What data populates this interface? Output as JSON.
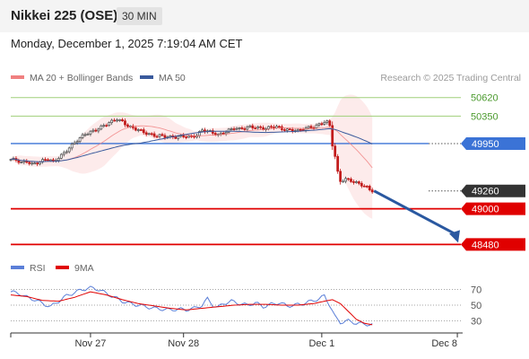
{
  "header": {
    "title": "Nikkei 225 (OSE)",
    "timeframe": "30 MIN"
  },
  "date_line": "Monday, December 1, 2025 7:19:04 AM CET",
  "copyright": "Research © 2025 Trading Central",
  "colors": {
    "bollinger": "#f08080",
    "ma50": "#3a5a9c",
    "resistance": "#3b73d6",
    "support": "#e00000",
    "green_lines": "#9fcf7a",
    "price_tag": "#333333",
    "rsi": "#5b7fd8",
    "rsi_ma": "#e00000",
    "arrow": "#2a58a0"
  },
  "chart_data": [
    {
      "type": "candlestick",
      "legend": [
        {
          "name": "MA 20 + Bollinger Bands",
          "color": "#f08080"
        },
        {
          "name": "MA 50",
          "color": "#3a5a9c"
        }
      ],
      "ylim": [
        48380,
        50760
      ],
      "x_ticks": [
        "Nov 27",
        "Nov 28",
        "Dec 1",
        "Dec 8"
      ],
      "levels": [
        {
          "value": 50620,
          "label": "50620",
          "kind": "green"
        },
        {
          "value": 50350,
          "label": "50350",
          "kind": "green"
        },
        {
          "value": 49950,
          "label": "49950",
          "kind": "resistance"
        },
        {
          "value": 49260,
          "label": "49260",
          "kind": "price"
        },
        {
          "value": 49000,
          "label": "49000",
          "kind": "support"
        },
        {
          "value": 48480,
          "label": "48480",
          "kind": "support"
        }
      ],
      "close_path": [
        [
          0,
          49720
        ],
        [
          2,
          49700
        ],
        [
          4,
          49660
        ],
        [
          6,
          49690
        ],
        [
          8,
          49660
        ],
        [
          10,
          49680
        ],
        [
          12,
          49700
        ],
        [
          14,
          49720
        ],
        [
          16,
          49670
        ],
        [
          18,
          49750
        ],
        [
          20,
          49820
        ],
        [
          22,
          49900
        ],
        [
          24,
          49960
        ],
        [
          26,
          50020
        ],
        [
          28,
          50080
        ],
        [
          30,
          50120
        ],
        [
          32,
          50160
        ],
        [
          34,
          50200
        ],
        [
          36,
          50230
        ],
        [
          38,
          50260
        ],
        [
          40,
          50300
        ],
        [
          42,
          50270
        ],
        [
          44,
          50220
        ],
        [
          46,
          50180
        ],
        [
          48,
          50150
        ],
        [
          50,
          50100
        ],
        [
          52,
          50080
        ],
        [
          54,
          50070
        ],
        [
          56,
          50080
        ],
        [
          58,
          50060
        ],
        [
          60,
          50040
        ],
        [
          62,
          50030
        ],
        [
          64,
          50050
        ],
        [
          66,
          50060
        ],
        [
          68,
          50060
        ],
        [
          70,
          50080
        ],
        [
          72,
          50140
        ],
        [
          74,
          50120
        ],
        [
          76,
          50100
        ],
        [
          78,
          50080
        ],
        [
          80,
          50120
        ],
        [
          82,
          50150
        ],
        [
          84,
          50170
        ],
        [
          86,
          50150
        ],
        [
          88,
          50170
        ],
        [
          90,
          50200
        ],
        [
          92,
          50200
        ],
        [
          94,
          50180
        ],
        [
          96,
          50160
        ],
        [
          98,
          50180
        ],
        [
          100,
          50190
        ],
        [
          102,
          50170
        ],
        [
          104,
          50160
        ],
        [
          106,
          50150
        ],
        [
          108,
          50130
        ],
        [
          110,
          50150
        ],
        [
          112,
          50180
        ],
        [
          114,
          50200
        ],
        [
          116,
          50240
        ],
        [
          118,
          50270
        ],
        [
          119,
          50260
        ],
        [
          120,
          50200
        ],
        [
          121,
          49920
        ],
        [
          122,
          49750
        ],
        [
          123,
          49520
        ],
        [
          124,
          49400
        ],
        [
          126,
          49440
        ],
        [
          128,
          49420
        ],
        [
          130,
          49380
        ],
        [
          132,
          49340
        ],
        [
          134,
          49300
        ],
        [
          135,
          49270
        ],
        [
          136,
          49260
        ]
      ],
      "forecast": {
        "from": 49260,
        "to": 48480
      }
    },
    {
      "type": "line",
      "legend": [
        {
          "name": "RSI",
          "color": "#5b7fd8"
        },
        {
          "name": "9MA",
          "color": "#e00000"
        }
      ],
      "ylim": [
        18,
        82
      ],
      "y_ticks": [
        70,
        50,
        30
      ],
      "rsi": [
        [
          0,
          67
        ],
        [
          3,
          65
        ],
        [
          6,
          60
        ],
        [
          9,
          57
        ],
        [
          12,
          52
        ],
        [
          15,
          48
        ],
        [
          18,
          55
        ],
        [
          21,
          62
        ],
        [
          24,
          66
        ],
        [
          27,
          70
        ],
        [
          30,
          72
        ],
        [
          33,
          70
        ],
        [
          36,
          65
        ],
        [
          39,
          60
        ],
        [
          42,
          55
        ],
        [
          45,
          52
        ],
        [
          48,
          50
        ],
        [
          51,
          48
        ],
        [
          54,
          46
        ],
        [
          57,
          45
        ],
        [
          60,
          44
        ],
        [
          63,
          45
        ],
        [
          66,
          44
        ],
        [
          69,
          46
        ],
        [
          72,
          50
        ],
        [
          74,
          58
        ],
        [
          76,
          50
        ],
        [
          78,
          47
        ],
        [
          80,
          52
        ],
        [
          83,
          55
        ],
        [
          86,
          52
        ],
        [
          89,
          50
        ],
        [
          92,
          53
        ],
        [
          95,
          48
        ],
        [
          98,
          51
        ],
        [
          101,
          53
        ],
        [
          104,
          49
        ],
        [
          107,
          50
        ],
        [
          110,
          52
        ],
        [
          113,
          55
        ],
        [
          116,
          58
        ],
        [
          118,
          62
        ],
        [
          120,
          50
        ],
        [
          122,
          35
        ],
        [
          124,
          28
        ],
        [
          127,
          30
        ],
        [
          130,
          27
        ],
        [
          133,
          26
        ],
        [
          136,
          25
        ]
      ],
      "ma9": [
        [
          0,
          63
        ],
        [
          6,
          61
        ],
        [
          12,
          56
        ],
        [
          18,
          55
        ],
        [
          24,
          60
        ],
        [
          30,
          67
        ],
        [
          36,
          63
        ],
        [
          42,
          57
        ],
        [
          48,
          52
        ],
        [
          54,
          49
        ],
        [
          60,
          46
        ],
        [
          66,
          44
        ],
        [
          72,
          46
        ],
        [
          78,
          48
        ],
        [
          84,
          50
        ],
        [
          90,
          51
        ],
        [
          96,
          51
        ],
        [
          102,
          50
        ],
        [
          108,
          50
        ],
        [
          114,
          52
        ],
        [
          118,
          55
        ],
        [
          121,
          57
        ],
        [
          124,
          52
        ],
        [
          127,
          42
        ],
        [
          130,
          32
        ],
        [
          133,
          27
        ],
        [
          136,
          25
        ]
      ]
    }
  ]
}
